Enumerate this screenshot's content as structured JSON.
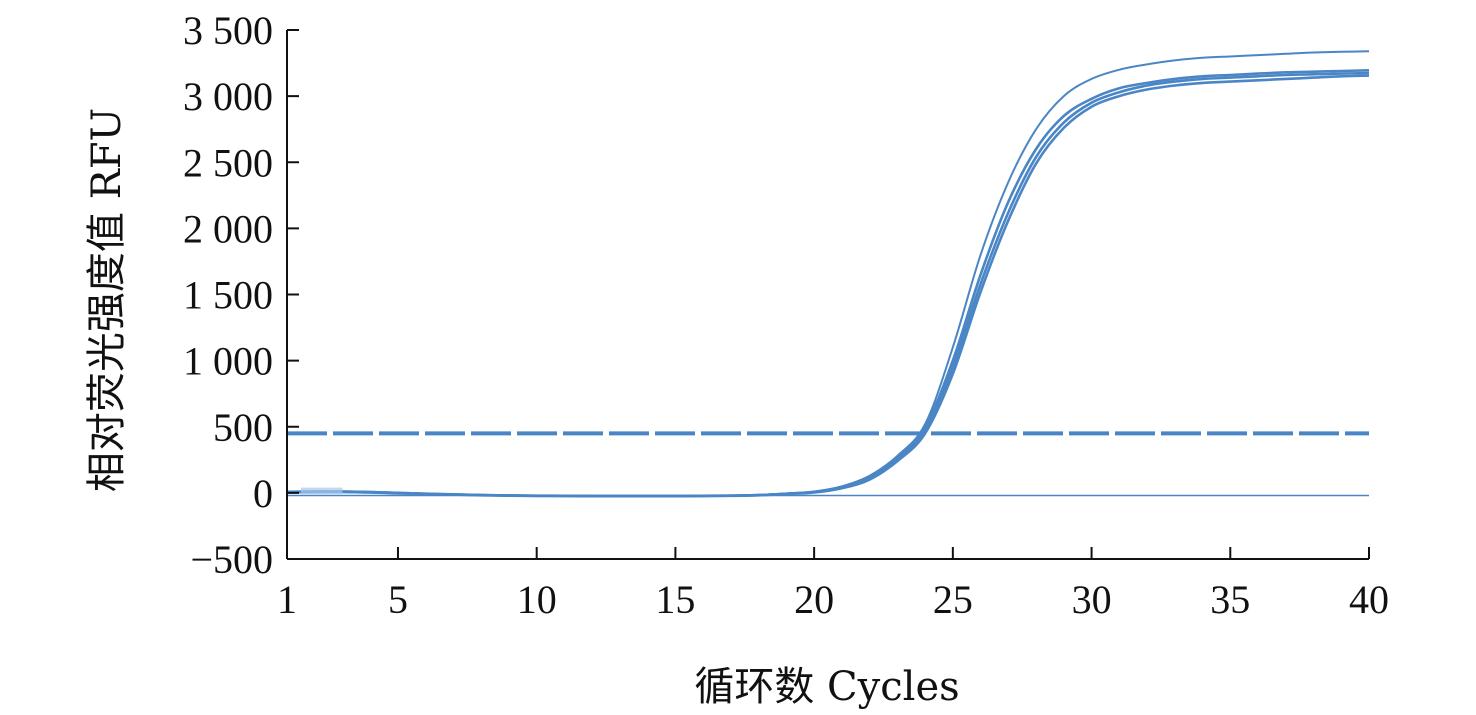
{
  "chart_data": {
    "type": "line",
    "title": "",
    "xlabel": "循环数 Cycles",
    "ylabel": "相对荧光强度值 RFU",
    "xlim": [
      1,
      40
    ],
    "ylim": [
      -500,
      3500
    ],
    "xticks": [
      1,
      5,
      10,
      15,
      20,
      25,
      30,
      35,
      40
    ],
    "xtick_labels": [
      "1",
      "5",
      "10",
      "15",
      "20",
      "25",
      "30",
      "35",
      "40"
    ],
    "yticks": [
      -500,
      0,
      500,
      1000,
      1500,
      2000,
      2500,
      3000,
      3500
    ],
    "ytick_labels": [
      "−500",
      "0",
      "500",
      "1 000",
      "1 500",
      "2 000",
      "2 500",
      "3 000",
      "3 500"
    ],
    "grid": false,
    "line_color": "#4a86c5",
    "threshold": 450,
    "baseline": -20,
    "series": [
      {
        "x": [
          1,
          2,
          3,
          4,
          5,
          6,
          7,
          8,
          9,
          10,
          11,
          12,
          13,
          14,
          15,
          16,
          17,
          18,
          19,
          20,
          21,
          22,
          23,
          24,
          25,
          26,
          27,
          28,
          29,
          30,
          31,
          32,
          33,
          34,
          35,
          36,
          37,
          38,
          39,
          40
        ],
        "values": [
          10,
          12,
          12,
          8,
          2,
          -5,
          -10,
          -15,
          -18,
          -20,
          -22,
          -22,
          -22,
          -22,
          -22,
          -22,
          -20,
          -15,
          -5,
          10,
          50,
          130,
          280,
          520,
          1100,
          1800,
          2350,
          2750,
          3000,
          3130,
          3200,
          3240,
          3270,
          3290,
          3300,
          3310,
          3320,
          3330,
          3335,
          3340
        ]
      },
      {
        "x": [
          1,
          2,
          3,
          4,
          5,
          6,
          7,
          8,
          9,
          10,
          11,
          12,
          13,
          14,
          15,
          16,
          17,
          18,
          19,
          20,
          21,
          22,
          23,
          24,
          25,
          26,
          27,
          28,
          29,
          30,
          31,
          32,
          33,
          34,
          35,
          36,
          37,
          38,
          39,
          40
        ],
        "values": [
          8,
          10,
          10,
          6,
          0,
          -6,
          -11,
          -16,
          -19,
          -21,
          -22,
          -23,
          -23,
          -23,
          -23,
          -22,
          -20,
          -16,
          -6,
          8,
          45,
          120,
          270,
          500,
          1000,
          1650,
          2200,
          2600,
          2850,
          2980,
          3060,
          3100,
          3130,
          3150,
          3160,
          3170,
          3180,
          3185,
          3190,
          3195
        ]
      },
      {
        "x": [
          1,
          2,
          3,
          4,
          5,
          6,
          7,
          8,
          9,
          10,
          11,
          12,
          13,
          14,
          15,
          16,
          17,
          18,
          19,
          20,
          21,
          22,
          23,
          24,
          25,
          26,
          27,
          28,
          29,
          30,
          31,
          32,
          33,
          34,
          35,
          36,
          37,
          38,
          39,
          40
        ],
        "values": [
          6,
          8,
          8,
          4,
          -2,
          -8,
          -12,
          -17,
          -20,
          -22,
          -23,
          -24,
          -24,
          -24,
          -24,
          -23,
          -21,
          -17,
          -7,
          5,
          40,
          110,
          255,
          470,
          950,
          1580,
          2120,
          2540,
          2800,
          2950,
          3030,
          3080,
          3110,
          3130,
          3140,
          3150,
          3160,
          3165,
          3170,
          3175
        ]
      },
      {
        "x": [
          1,
          2,
          3,
          4,
          5,
          6,
          7,
          8,
          9,
          10,
          11,
          12,
          13,
          14,
          15,
          16,
          17,
          18,
          19,
          20,
          21,
          22,
          23,
          24,
          25,
          26,
          27,
          28,
          29,
          30,
          31,
          32,
          33,
          34,
          35,
          36,
          37,
          38,
          39,
          40
        ],
        "values": [
          5,
          7,
          7,
          3,
          -3,
          -9,
          -13,
          -18,
          -21,
          -23,
          -24,
          -25,
          -25,
          -25,
          -25,
          -24,
          -22,
          -18,
          -8,
          3,
          35,
          100,
          240,
          450,
          900,
          1520,
          2060,
          2490,
          2760,
          2920,
          3000,
          3050,
          3080,
          3100,
          3110,
          3120,
          3130,
          3140,
          3150,
          3155
        ]
      }
    ]
  }
}
